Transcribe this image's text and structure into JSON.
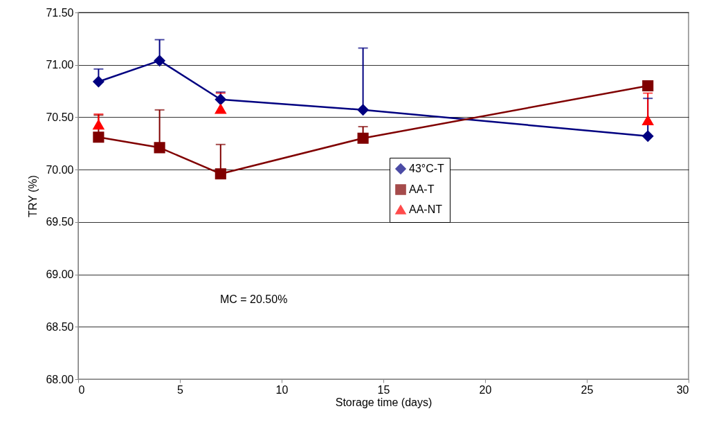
{
  "chart_data": {
    "type": "line",
    "xlabel": "Storage time (days)",
    "ylabel": "TRY (%)",
    "xlim": [
      0,
      30
    ],
    "xticks": [
      0,
      5,
      10,
      15,
      20,
      25,
      30
    ],
    "ylim": [
      68,
      71.5
    ],
    "yticks": [
      {
        "value": 68,
        "label": "68.00"
      },
      {
        "value": 68.5,
        "label": "68.50"
      },
      {
        "value": 69,
        "label": "69.00"
      },
      {
        "value": 69.5,
        "label": "69.50"
      },
      {
        "value": 70,
        "label": "70.00"
      },
      {
        "value": 70.5,
        "label": "70.50"
      },
      {
        "value": 71,
        "label": "71.00"
      },
      {
        "value": 71.5,
        "label": "71.50"
      }
    ],
    "grid": "y",
    "legend": "center",
    "annotations": [
      "MC = 20.50%"
    ],
    "series": [
      {
        "name": "43°C-T",
        "color": "#000080",
        "marker": "diamond",
        "x": [
          1,
          4,
          7,
          14,
          28
        ],
        "values": [
          70.84,
          71.04,
          70.67,
          70.57,
          70.32
        ],
        "errors": [
          [
            70.84,
            70.96
          ],
          [
            71.04,
            71.24
          ],
          [
            70.67,
            70.74
          ],
          [
            70.57,
            71.16
          ],
          [
            70.32,
            70.68
          ]
        ]
      },
      {
        "name": "AA-T",
        "color": "#800000",
        "marker": "square",
        "x": [
          1,
          4,
          7,
          14,
          28
        ],
        "values": [
          70.31,
          70.21,
          69.96,
          70.3,
          70.8
        ],
        "errors": [
          [
            70.31,
            70.52
          ],
          [
            70.21,
            70.57
          ],
          [
            69.96,
            70.24
          ],
          [
            70.3,
            70.41
          ],
          null
        ]
      },
      {
        "name": "AA-NT",
        "color": "#ff0000",
        "marker": "triangle",
        "type": "scatter",
        "x": [
          1,
          7,
          28
        ],
        "values": [
          70.43,
          70.58,
          70.47
        ],
        "errors": [
          [
            70.43,
            70.53
          ],
          [
            70.58,
            70.73
          ],
          [
            70.47,
            70.73
          ]
        ]
      }
    ]
  }
}
